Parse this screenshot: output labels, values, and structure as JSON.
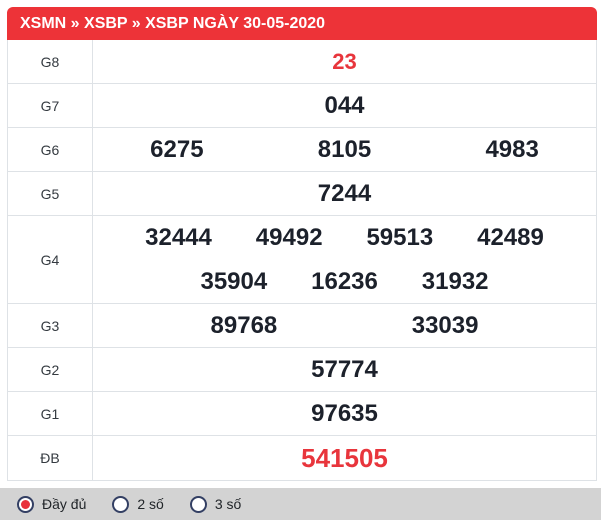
{
  "header": {
    "title": "XSMN » XSBP » XSBP NGÀY 30-05-2020"
  },
  "table": {
    "rows": [
      {
        "label": "G8",
        "values": [
          "23"
        ],
        "highlight": true
      },
      {
        "label": "G7",
        "values": [
          "044"
        ],
        "highlight": false
      },
      {
        "label": "G6",
        "values": [
          "6275",
          "8105",
          "4983"
        ],
        "highlight": false
      },
      {
        "label": "G5",
        "values": [
          "7244"
        ],
        "highlight": false
      },
      {
        "label": "G4",
        "values": [
          "32444",
          "49492",
          "59513",
          "42489",
          "35904",
          "16236",
          "31932"
        ],
        "highlight": false
      },
      {
        "label": "G3",
        "values": [
          "89768",
          "33039"
        ],
        "highlight": false
      },
      {
        "label": "G2",
        "values": [
          "57774"
        ],
        "highlight": false
      },
      {
        "label": "G1",
        "values": [
          "97635"
        ],
        "highlight": false
      },
      {
        "label": "ĐB",
        "values": [
          "541505"
        ],
        "highlight": true
      }
    ]
  },
  "filter": {
    "options": [
      {
        "label": "Đầy đủ",
        "selected": true
      },
      {
        "label": "2 số",
        "selected": false
      },
      {
        "label": "3 số",
        "selected": false
      }
    ]
  },
  "colors": {
    "accent_red": "#ED3338",
    "highlight_red": "#E8353C",
    "value_text": "#1C212B",
    "border": "#DEE2E6",
    "filter_bar_bg": "#D3D3D3",
    "radio_border": "#333F63"
  }
}
